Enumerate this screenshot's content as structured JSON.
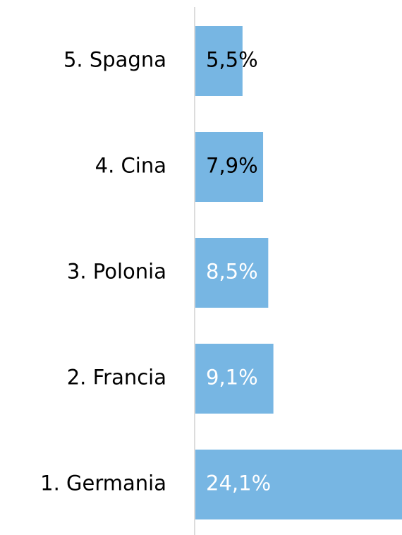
{
  "chart_data": {
    "type": "bar",
    "orientation": "horizontal",
    "categories": [
      "5. Spagna",
      "4. Cina",
      "3. Polonia",
      "2. Francia",
      "1. Germania"
    ],
    "values": [
      5.5,
      7.9,
      8.5,
      9.1,
      24.1
    ],
    "value_labels": [
      "5,5%",
      "7,9%",
      "8,5%",
      "9,1%",
      "24,1%"
    ],
    "value_label_colors": [
      "#000000",
      "#000000",
      "#ffffff",
      "#ffffff",
      "#ffffff"
    ],
    "color": "#77b6e3"
  }
}
